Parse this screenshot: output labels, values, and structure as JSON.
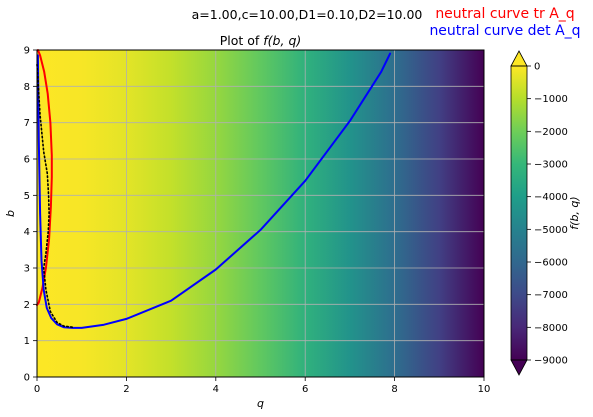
{
  "figure": {
    "params": "a=1.00,c=10.00,D1=0.10,D2=10.00",
    "legend": [
      {
        "label": "neutral curve tr A_q",
        "color": "#ff0000"
      },
      {
        "label": "neutral curve det A_q",
        "color": "#0000ff"
      }
    ]
  },
  "chart_data": {
    "type": "heatmap",
    "title": "Plot of f(b, q)",
    "xlabel": "q",
    "ylabel": "b",
    "xlim": [
      0,
      10
    ],
    "ylim": [
      0,
      9
    ],
    "xticks": [
      "0",
      "2",
      "4",
      "6",
      "8",
      "10"
    ],
    "yticks": [
      "0",
      "1",
      "2",
      "3",
      "4",
      "5",
      "6",
      "7",
      "8",
      "9"
    ],
    "grid": true,
    "colormap": "viridis",
    "colorbar": {
      "label": "f(b, q)",
      "min": -9000,
      "max": 0,
      "ticks": [
        "0",
        "−1000",
        "−2000",
        "−3000",
        "−4000",
        "−5000",
        "−6000",
        "−7000",
        "−8000",
        "−9000"
      ],
      "extend": "both"
    },
    "field_samples": {
      "q": [
        0,
        1,
        2,
        3,
        4,
        5,
        6,
        7,
        8,
        9,
        10
      ],
      "f": [
        0,
        -90,
        -360,
        -810,
        -1440,
        -2250,
        -3240,
        -4410,
        -5760,
        -7290,
        -9000
      ]
    },
    "series": [
      {
        "name": "neutral curve tr A_q",
        "color": "#ff0000",
        "style": "solid",
        "points": [
          [
            0.0,
            1.98
          ],
          [
            0.04,
            2.05
          ],
          [
            0.12,
            2.45
          ],
          [
            0.2,
            3.0
          ],
          [
            0.27,
            3.8
          ],
          [
            0.31,
            4.7
          ],
          [
            0.33,
            5.5
          ],
          [
            0.33,
            6.1
          ],
          [
            0.3,
            7.0
          ],
          [
            0.24,
            7.8
          ],
          [
            0.16,
            8.4
          ],
          [
            0.07,
            8.85
          ],
          [
            0.02,
            9.0
          ]
        ]
      },
      {
        "name": "neutral curve det A_q",
        "color": "#0000ff",
        "style": "solid",
        "points": [
          [
            0.02,
            8.85
          ],
          [
            0.04,
            6.5
          ],
          [
            0.07,
            4.5
          ],
          [
            0.1,
            3.2
          ],
          [
            0.15,
            2.4
          ],
          [
            0.22,
            1.9
          ],
          [
            0.32,
            1.62
          ],
          [
            0.45,
            1.45
          ],
          [
            0.6,
            1.37
          ],
          [
            0.8,
            1.35
          ],
          [
            1.0,
            1.35
          ],
          [
            1.5,
            1.44
          ],
          [
            2.0,
            1.6
          ],
          [
            3.0,
            2.1
          ],
          [
            4.0,
            2.96
          ],
          [
            5.0,
            4.05
          ],
          [
            6.0,
            5.4
          ],
          [
            7.0,
            7.05
          ],
          [
            7.7,
            8.4
          ],
          [
            7.9,
            8.9
          ]
        ]
      },
      {
        "name": "",
        "color": "#000000",
        "style": "dotted",
        "points": [
          [
            0.0,
            8.6
          ],
          [
            0.07,
            7.2
          ],
          [
            0.15,
            6.2
          ],
          [
            0.23,
            5.6
          ],
          [
            0.26,
            5.0
          ],
          [
            0.27,
            4.5
          ],
          [
            0.25,
            4.0
          ],
          [
            0.2,
            3.4
          ],
          [
            0.15,
            3.0
          ],
          [
            0.2,
            2.4
          ],
          [
            0.3,
            1.8
          ],
          [
            0.45,
            1.5
          ],
          [
            0.6,
            1.4
          ],
          [
            0.8,
            1.37
          ]
        ]
      }
    ]
  }
}
